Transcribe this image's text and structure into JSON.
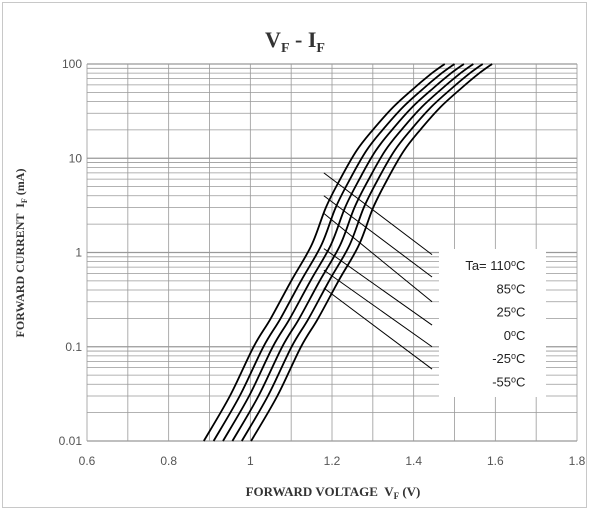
{
  "chart_data": {
    "type": "line",
    "title": {
      "main": "V",
      "main_sub": "F",
      "sep": " - ",
      "second": "I",
      "second_sub": "F"
    },
    "xlabel": {
      "text": "FORWARD VOLTAGE  V",
      "sub": "F",
      "unit": " (V)"
    },
    "ylabel": {
      "text": "FORWARD CURRENT  I",
      "sub": "F",
      "unit": " (mA)"
    },
    "x_scale": "linear",
    "y_scale": "log",
    "xlim": [
      0.6,
      1.8
    ],
    "ylim": [
      0.01,
      100
    ],
    "x_ticks": [
      "0.6",
      "0.8",
      "1",
      "1.2",
      "1.4",
      "1.6",
      "1.8"
    ],
    "y_ticks": [
      "0.01",
      "0.1",
      "1",
      "10",
      "100"
    ],
    "grid": true,
    "legend_prefix": "Ta= ",
    "series": [
      {
        "name": "110",
        "x": [
          0.886,
          0.95,
          1.008,
          1.05,
          1.1,
          1.15,
          1.185,
          1.22,
          1.26,
          1.3,
          1.35,
          1.4,
          1.445,
          1.476
        ],
        "y": [
          0.01,
          0.03,
          0.1,
          0.2,
          0.5,
          1.2,
          3.0,
          6.0,
          12,
          20,
          35,
          55,
          80,
          100
        ]
      },
      {
        "name": "85",
        "x": [
          0.91,
          0.974,
          1.032,
          1.074,
          1.124,
          1.174,
          1.209,
          1.244,
          1.284,
          1.324,
          1.374,
          1.424,
          1.469,
          1.5
        ],
        "y": [
          0.01,
          0.03,
          0.1,
          0.2,
          0.5,
          1.2,
          3.0,
          6.0,
          12,
          20,
          35,
          55,
          80,
          100
        ]
      },
      {
        "name": "25",
        "x": [
          0.933,
          0.997,
          1.055,
          1.097,
          1.147,
          1.197,
          1.232,
          1.267,
          1.307,
          1.347,
          1.397,
          1.447,
          1.492,
          1.523
        ],
        "y": [
          0.01,
          0.03,
          0.1,
          0.2,
          0.5,
          1.2,
          3.0,
          6.0,
          12,
          20,
          35,
          55,
          80,
          100
        ]
      },
      {
        "name": "0",
        "x": [
          0.956,
          1.02,
          1.078,
          1.12,
          1.17,
          1.22,
          1.255,
          1.29,
          1.33,
          1.37,
          1.42,
          1.47,
          1.515,
          1.546
        ],
        "y": [
          0.01,
          0.03,
          0.1,
          0.2,
          0.5,
          1.2,
          3.0,
          6.0,
          12,
          20,
          35,
          55,
          80,
          100
        ]
      },
      {
        "name": "-25",
        "x": [
          0.979,
          1.043,
          1.101,
          1.143,
          1.193,
          1.243,
          1.278,
          1.313,
          1.353,
          1.393,
          1.443,
          1.493,
          1.538,
          1.569
        ],
        "y": [
          0.01,
          0.03,
          0.1,
          0.2,
          0.5,
          1.2,
          3.0,
          6.0,
          12,
          20,
          35,
          55,
          80,
          100
        ]
      },
      {
        "name": "-55",
        "x": [
          1.002,
          1.066,
          1.124,
          1.166,
          1.216,
          1.266,
          1.301,
          1.336,
          1.376,
          1.416,
          1.466,
          1.516,
          1.561,
          1.592
        ],
        "y": [
          0.01,
          0.03,
          0.1,
          0.2,
          0.5,
          1.2,
          3.0,
          6.0,
          12,
          20,
          35,
          55,
          80,
          100
        ]
      }
    ],
    "leaders": [
      {
        "name": "110",
        "x": [
          1.18,
          1.445
        ],
        "y": [
          7.0,
          0.95
        ]
      },
      {
        "name": "85",
        "x": [
          1.18,
          1.445
        ],
        "y": [
          4.0,
          0.55
        ]
      },
      {
        "name": "25",
        "x": [
          1.18,
          1.445
        ],
        "y": [
          2.6,
          0.3
        ]
      },
      {
        "name": "0",
        "x": [
          1.18,
          1.445
        ],
        "y": [
          1.1,
          0.17
        ]
      },
      {
        "name": "-25",
        "x": [
          1.18,
          1.445
        ],
        "y": [
          0.65,
          0.1
        ]
      },
      {
        "name": "-55",
        "x": [
          1.18,
          1.445
        ],
        "y": [
          0.42,
          0.058
        ]
      }
    ],
    "legend_labels": [
      "110",
      "85",
      "25",
      "0",
      "-25",
      "-55"
    ],
    "legend_unit_sup": "o",
    "legend_unit": "C",
    "line_color": "#000000",
    "grid_color": "#999999"
  }
}
